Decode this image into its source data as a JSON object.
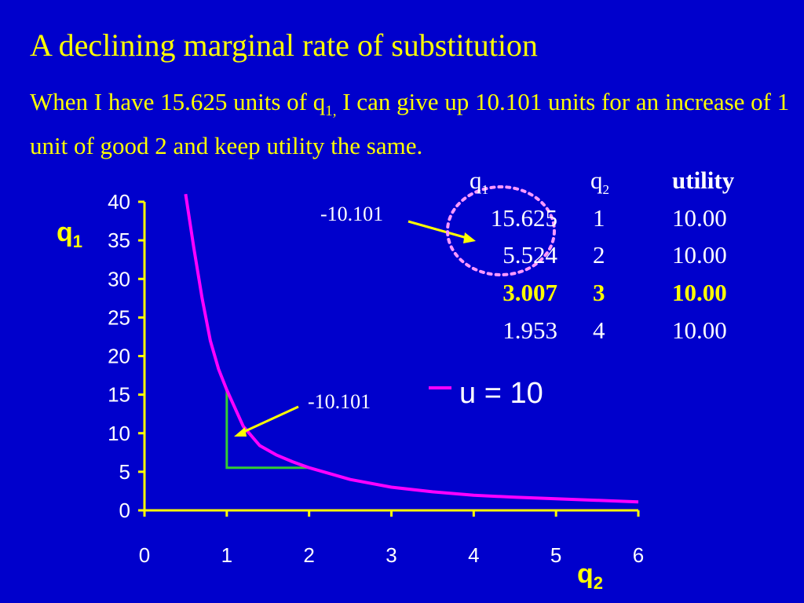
{
  "slide": {
    "title": "A declining marginal rate of substitution",
    "subtitle_part1": "When I have 15.625 units of q",
    "subtitle_sub": "1,",
    "subtitle_part2": " I can give up 10.101 units for an increase of 1 unit of good 2 and keep utility the same."
  },
  "table": {
    "headers": [
      {
        "base": "q",
        "sub": "1"
      },
      {
        "base": "q",
        "sub": "2"
      },
      {
        "base": "utility",
        "sub": ""
      }
    ],
    "rows": [
      {
        "q1": "15.625",
        "q2": "1",
        "utility": "10.00",
        "bold": false
      },
      {
        "q1": "5.524",
        "q2": "2",
        "utility": "10.00",
        "bold": false
      },
      {
        "q1": "3.007",
        "q2": "3",
        "utility": "10.00",
        "bold": true
      },
      {
        "q1": "1.953",
        "q2": "4",
        "utility": "10.00",
        "bold": false
      }
    ]
  },
  "annotations": {
    "top_label": "-10.101",
    "mid_label": "-10.101"
  },
  "colors": {
    "background": "#0000cc",
    "text": "#ffff00",
    "curve": "#ff00ff",
    "triangle": "#33cc33",
    "circle": "#ff99ff",
    "axis": "#ffff00",
    "table_text": "#ffffff"
  },
  "chart_data": {
    "type": "line",
    "xlabel": "q",
    "xlabel_sub": "2",
    "ylabel": "q",
    "ylabel_sub": "1",
    "xlim": [
      0,
      6
    ],
    "ylim": [
      0,
      40
    ],
    "xticks": [
      0,
      1,
      2,
      3,
      4,
      5,
      6
    ],
    "yticks": [
      0,
      5,
      10,
      15,
      20,
      25,
      30,
      35,
      40
    ],
    "grid": false,
    "legend_position": "right-middle",
    "series": [
      {
        "name": "u = 10",
        "x": [
          0.5,
          0.6,
          0.7,
          0.8,
          0.9,
          1.0,
          1.2,
          1.4,
          1.6,
          1.8,
          2.0,
          2.5,
          3.0,
          3.5,
          4.0,
          4.5,
          5.0,
          5.5,
          6.0
        ],
        "y": [
          41.0,
          34.0,
          27.5,
          22.0,
          18.3,
          15.625,
          10.9,
          8.4,
          7.2,
          6.3,
          5.524,
          4.0,
          3.007,
          2.4,
          1.953,
          1.7,
          1.5,
          1.3,
          1.1
        ]
      }
    ],
    "step": {
      "x1": 1,
      "y1": 15.625,
      "x2": 2,
      "y2": 5.524
    }
  }
}
